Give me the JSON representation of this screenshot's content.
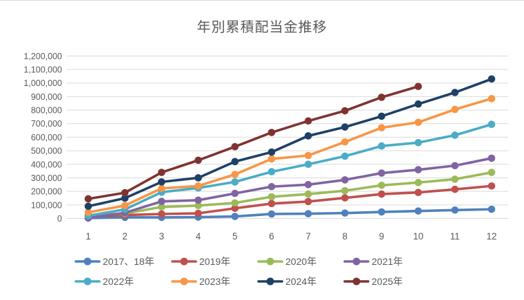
{
  "chart_data": {
    "type": "line",
    "title": "年別累積配当金推移",
    "x_labels": [
      "1",
      "2",
      "3",
      "4",
      "5",
      "6",
      "7",
      "8",
      "9",
      "10",
      "11",
      "12"
    ],
    "ylim": [
      0,
      1200000
    ],
    "ytick_step": 100000,
    "ytick_labels": [
      "0",
      "100,000",
      "200,000",
      "300,000",
      "400,000",
      "500,000",
      "600,000",
      "700,000",
      "800,000",
      "900,000",
      "1,000,000",
      "1,100,000",
      "1,200,000"
    ],
    "grid": true,
    "legend_position": "bottom",
    "axis_text_color": "#595959",
    "gridline_color": "#d9d9d9",
    "series": [
      {
        "name": "2017、18年",
        "color": "#4F81BD",
        "values": [
          3000,
          8000,
          8000,
          10000,
          15000,
          33000,
          35000,
          40000,
          48000,
          55000,
          62000,
          68000
        ]
      },
      {
        "name": "2019年",
        "color": "#C0504D",
        "values": [
          15000,
          25000,
          33000,
          38000,
          75000,
          110000,
          125000,
          152000,
          180000,
          192000,
          215000,
          240000
        ]
      },
      {
        "name": "2020年",
        "color": "#9BBB59",
        "values": [
          25000,
          36000,
          85000,
          95000,
          115000,
          160000,
          180000,
          205000,
          245000,
          265000,
          290000,
          340000
        ]
      },
      {
        "name": "2021年",
        "color": "#8064A2",
        "values": [
          5000,
          42000,
          126000,
          135000,
          185000,
          235000,
          250000,
          285000,
          335000,
          360000,
          390000,
          445000
        ]
      },
      {
        "name": "2022年",
        "color": "#4BACC6",
        "values": [
          20000,
          67000,
          194000,
          225000,
          270000,
          345000,
          400000,
          460000,
          535000,
          560000,
          615000,
          695000
        ]
      },
      {
        "name": "2023年",
        "color": "#F79646",
        "values": [
          45000,
          95000,
          222000,
          240000,
          325000,
          440000,
          465000,
          565000,
          670000,
          710000,
          805000,
          885000
        ]
      },
      {
        "name": "2024年",
        "color": "#1F4066",
        "values": [
          90000,
          150000,
          270000,
          300000,
          420000,
          490000,
          610000,
          675000,
          755000,
          845000,
          930000,
          1030000
        ]
      },
      {
        "name": "2025年",
        "color": "#7F3331",
        "values": [
          145000,
          190000,
          340000,
          430000,
          530000,
          635000,
          720000,
          795000,
          895000,
          975000,
          null,
          null
        ]
      }
    ]
  }
}
